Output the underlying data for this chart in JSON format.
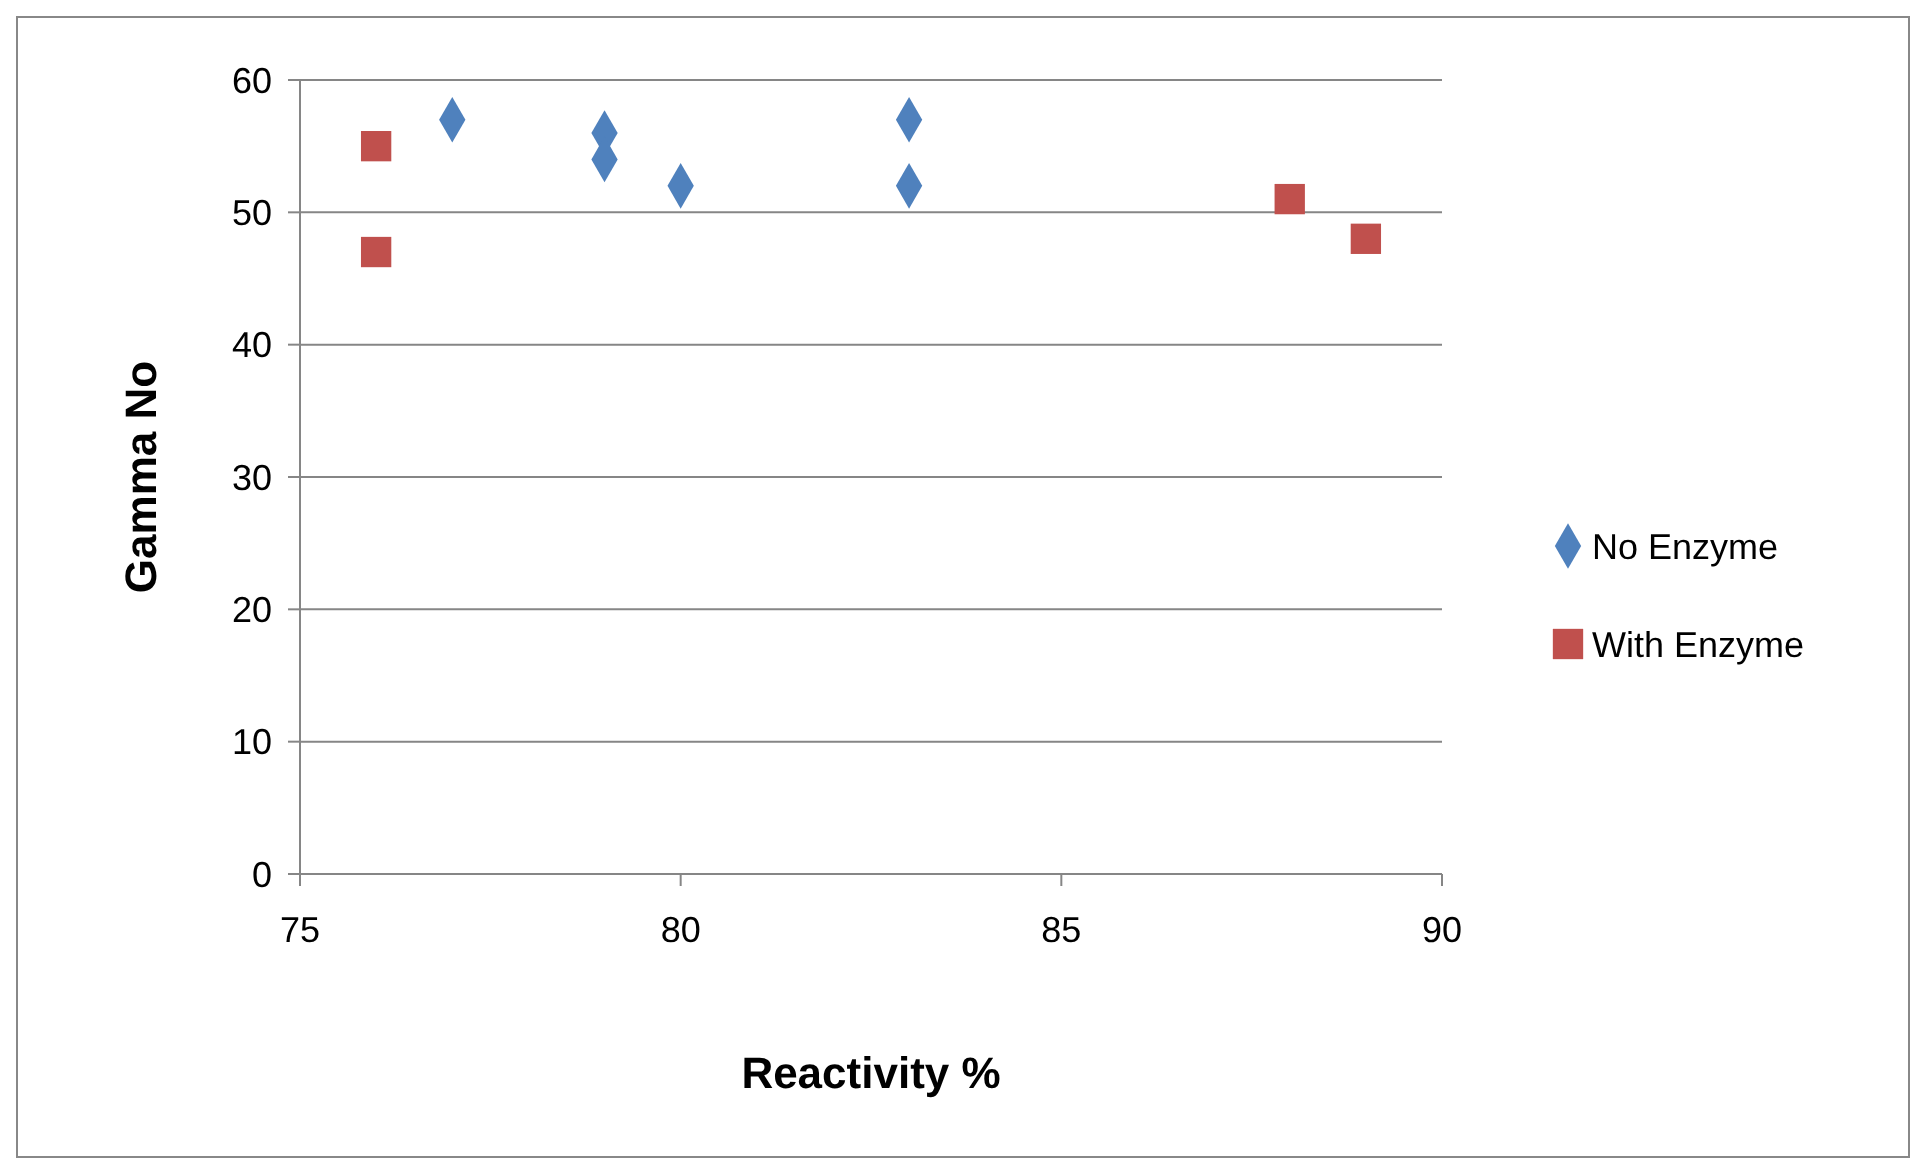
{
  "chart_data": {
    "type": "scatter",
    "xlabel": "Reactivity %",
    "ylabel": "Gamma No",
    "xlim": [
      75,
      90
    ],
    "xticks": [
      75,
      80,
      85,
      90
    ],
    "ylim": [
      0,
      60
    ],
    "yticks": [
      0,
      10,
      20,
      30,
      40,
      50,
      60
    ],
    "grid": "y",
    "legend": "right",
    "series": [
      {
        "name": "No Enzyme",
        "color": "#4f81bd",
        "marker": "diamond",
        "x": [
          77,
          79,
          79,
          80,
          83,
          83
        ],
        "values": [
          57,
          56,
          54,
          52,
          57,
          52
        ]
      },
      {
        "name": "With Enzyme",
        "color": "#c0504d",
        "marker": "square",
        "x": [
          76,
          76,
          88,
          89
        ],
        "values": [
          55,
          47,
          51,
          48
        ]
      }
    ]
  }
}
